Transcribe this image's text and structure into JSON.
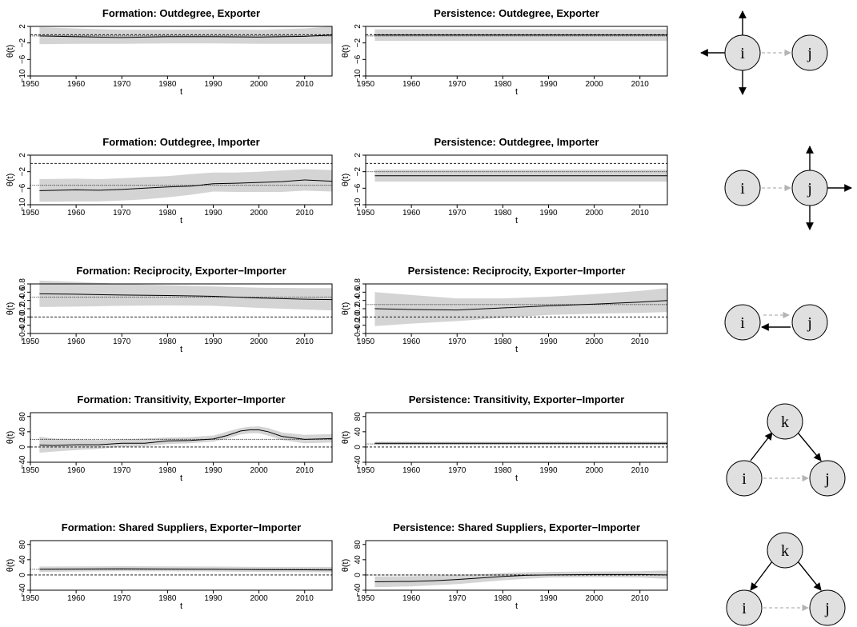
{
  "chart_data": [
    {
      "type": "line",
      "title": "Formation: Outdegree, Exporter",
      "xlabel": "t",
      "ylabel": "θ(t)",
      "xlim": [
        1950,
        2016
      ],
      "ylim": [
        -10,
        2
      ],
      "yticks": [
        2,
        -2,
        -6,
        -10
      ],
      "xticks": [
        1950,
        1960,
        1970,
        1980,
        1990,
        2000,
        2010
      ],
      "ref_lines": [
        {
          "value": 0,
          "style": "dashed"
        },
        {
          "value": -0.3,
          "style": "dotted"
        }
      ],
      "x": [
        1952,
        1960,
        1970,
        1980,
        1990,
        2000,
        2010,
        2016
      ],
      "series": [
        {
          "values": [
            -0.3,
            -0.5,
            -0.7,
            -0.5,
            -0.5,
            -0.6,
            -0.4,
            -0.1
          ],
          "lower": [
            -2.3,
            -2.2,
            -2.2,
            -2.1,
            -2.1,
            -2.2,
            -2.2,
            -2.2
          ],
          "upper": [
            1.8,
            1.5,
            1.2,
            1.2,
            1.3,
            1.2,
            1.5,
            2.0
          ]
        }
      ]
    },
    {
      "type": "line",
      "title": "Persistence: Outdegree, Exporter",
      "xlabel": "t",
      "ylabel": "θ(t)",
      "xlim": [
        1950,
        2016
      ],
      "ylim": [
        -10,
        2
      ],
      "yticks": [
        2,
        -2,
        -6,
        -10
      ],
      "xticks": [
        1950,
        1960,
        1970,
        1980,
        1990,
        2000,
        2010
      ],
      "ref_lines": [
        {
          "value": 0,
          "style": "dashed"
        },
        {
          "value": -0.3,
          "style": "dotted"
        }
      ],
      "x": [
        1952,
        2016
      ],
      "series": [
        {
          "values": [
            -0.1,
            -0.1
          ],
          "lower": [
            -1.5,
            -1.5
          ],
          "upper": [
            1.3,
            1.3
          ]
        }
      ]
    },
    {
      "type": "line",
      "title": "Formation: Outdegree, Importer",
      "xlabel": "t",
      "ylabel": "θ(t)",
      "xlim": [
        1950,
        2016
      ],
      "ylim": [
        -10,
        2
      ],
      "yticks": [
        2,
        -2,
        -6,
        -10
      ],
      "xticks": [
        1950,
        1960,
        1970,
        1980,
        1990,
        2000,
        2010
      ],
      "ref_lines": [
        {
          "value": 0,
          "style": "dashed"
        },
        {
          "value": -5.3,
          "style": "dotted"
        }
      ],
      "x": [
        1952,
        1960,
        1965,
        1970,
        1975,
        1980,
        1985,
        1990,
        1995,
        2000,
        2005,
        2010,
        2016
      ],
      "series": [
        {
          "values": [
            -6.6,
            -6.4,
            -6.5,
            -6.3,
            -6.0,
            -5.7,
            -5.5,
            -4.9,
            -4.8,
            -4.6,
            -4.4,
            -4.0,
            -4.3
          ],
          "lower": [
            -9.3,
            -9.2,
            -9.2,
            -9.0,
            -8.7,
            -8.2,
            -7.6,
            -6.8,
            -6.9,
            -6.9,
            -6.9,
            -6.6,
            -6.8
          ],
          "upper": [
            -3.8,
            -3.7,
            -3.8,
            -3.6,
            -3.3,
            -3.1,
            -2.6,
            -2.2,
            -2.2,
            -2.0,
            -1.7,
            -1.4,
            -1.6
          ]
        }
      ]
    },
    {
      "type": "line",
      "title": "Persistence: Outdegree, Importer",
      "xlabel": "t",
      "ylabel": "θ(t)",
      "xlim": [
        1950,
        2016
      ],
      "ylim": [
        -10,
        2
      ],
      "yticks": [
        2,
        -2,
        -6,
        -10
      ],
      "xticks": [
        1950,
        1960,
        1970,
        1980,
        1990,
        2000,
        2010
      ],
      "ref_lines": [
        {
          "value": 0,
          "style": "dashed"
        },
        {
          "value": -2,
          "style": "dotted"
        }
      ],
      "x": [
        1952,
        2016
      ],
      "series": [
        {
          "values": [
            -3.0,
            -3.0
          ],
          "lower": [
            -4.4,
            -4.4
          ],
          "upper": [
            -1.5,
            -1.5
          ]
        }
      ]
    },
    {
      "type": "line",
      "title": "Formation: Reciprocity, Exporter−Importer",
      "xlabel": "t",
      "ylabel": "θ(t)",
      "xlim": [
        1950,
        2016
      ],
      "ylim": [
        -0.4,
        0.8
      ],
      "yticks": [
        0.8,
        0.6,
        0.4,
        0.2,
        0.0,
        -0.2,
        -0.4
      ],
      "ytick_labels": [
        "0.8",
        "0.6",
        "0.4",
        "0.2",
        "0.0",
        "−0.2",
        "−0.4"
      ],
      "xticks": [
        1950,
        1960,
        1970,
        1980,
        1990,
        2000,
        2010
      ],
      "ref_lines": [
        {
          "value": 0,
          "style": "dashed"
        },
        {
          "value": 0.48,
          "style": "dotted"
        }
      ],
      "x": [
        1952,
        1960,
        1970,
        1980,
        1990,
        2000,
        2010,
        2016
      ],
      "series": [
        {
          "values": [
            0.56,
            0.55,
            0.53,
            0.52,
            0.5,
            0.46,
            0.43,
            0.42
          ],
          "lower": [
            0.24,
            0.25,
            0.27,
            0.28,
            0.27,
            0.22,
            0.18,
            0.16
          ],
          "upper": [
            0.88,
            0.85,
            0.8,
            0.77,
            0.74,
            0.71,
            0.7,
            0.7
          ]
        }
      ]
    },
    {
      "type": "line",
      "title": "Persistence: Reciprocity, Exporter−Importer",
      "xlabel": "t",
      "ylabel": "θ(t)",
      "xlim": [
        1950,
        2016
      ],
      "ylim": [
        -0.4,
        0.8
      ],
      "yticks": [
        0.8,
        0.6,
        0.4,
        0.2,
        0.0,
        -0.2,
        -0.4
      ],
      "ytick_labels": [
        "0.8",
        "0.6",
        "0.4",
        "0.2",
        "0.0",
        "−0.2",
        "−0.4"
      ],
      "xticks": [
        1950,
        1960,
        1970,
        1980,
        1990,
        2000,
        2010
      ],
      "ref_lines": [
        {
          "value": 0,
          "style": "dashed"
        },
        {
          "value": 0.3,
          "style": "dotted"
        }
      ],
      "x": [
        1952,
        1960,
        1970,
        1980,
        1990,
        2000,
        2010,
        2016
      ],
      "series": [
        {
          "values": [
            0.2,
            0.18,
            0.17,
            0.22,
            0.27,
            0.31,
            0.36,
            0.4
          ],
          "lower": [
            -0.22,
            -0.16,
            -0.1,
            -0.02,
            0.05,
            0.08,
            0.1,
            0.12
          ],
          "upper": [
            0.6,
            0.53,
            0.45,
            0.45,
            0.49,
            0.55,
            0.63,
            0.7
          ]
        }
      ]
    },
    {
      "type": "line",
      "title": "Formation: Transitivity, Exporter−Importer",
      "xlabel": "t",
      "ylabel": "θ(t)",
      "xlim": [
        1950,
        2016
      ],
      "ylim": [
        -40,
        90
      ],
      "yticks": [
        80,
        40,
        0,
        -40
      ],
      "xticks": [
        1950,
        1960,
        1970,
        1980,
        1990,
        2000,
        2010
      ],
      "ref_lines": [
        {
          "value": 0,
          "style": "dashed"
        },
        {
          "value": 20,
          "style": "dotted"
        }
      ],
      "x": [
        1952,
        1955,
        1960,
        1965,
        1970,
        1975,
        1980,
        1985,
        1990,
        1993,
        1996,
        1998,
        2000,
        2002,
        2005,
        2010,
        2016
      ],
      "series": [
        {
          "values": [
            5,
            4,
            6,
            6,
            10,
            10,
            16,
            17,
            21,
            30,
            42,
            45,
            45,
            40,
            28,
            20,
            22
          ],
          "lower": [
            -15,
            -12,
            -8,
            -5,
            0,
            2,
            8,
            10,
            14,
            22,
            33,
            36,
            36,
            30,
            18,
            10,
            12
          ],
          "upper": [
            27,
            22,
            20,
            18,
            20,
            22,
            25,
            26,
            30,
            40,
            50,
            53,
            54,
            50,
            38,
            32,
            34
          ]
        }
      ]
    },
    {
      "type": "line",
      "title": "Persistence: Transitivity, Exporter−Importer",
      "xlabel": "t",
      "ylabel": "θ(t)",
      "xlim": [
        1950,
        2016
      ],
      "ylim": [
        -40,
        90
      ],
      "yticks": [
        80,
        40,
        0,
        -40
      ],
      "xticks": [
        1950,
        1960,
        1970,
        1980,
        1990,
        2000,
        2010
      ],
      "ref_lines": [
        {
          "value": 0,
          "style": "dashed"
        },
        {
          "value": 8,
          "style": "dotted"
        }
      ],
      "x": [
        1952,
        2016
      ],
      "series": [
        {
          "values": [
            10,
            10
          ],
          "lower": [
            6,
            6
          ],
          "upper": [
            14,
            14
          ]
        }
      ]
    },
    {
      "type": "line",
      "title": "Formation: Shared Suppliers, Exporter−Importer",
      "xlabel": "t",
      "ylabel": "θ(t)",
      "xlim": [
        1950,
        2016
      ],
      "ylim": [
        -40,
        90
      ],
      "yticks": [
        80,
        40,
        0,
        -40
      ],
      "xticks": [
        1950,
        1960,
        1970,
        1980,
        1990,
        2000,
        2010
      ],
      "ref_lines": [
        {
          "value": 0,
          "style": "dashed"
        },
        {
          "value": 15,
          "style": "dotted"
        }
      ],
      "x": [
        1952,
        1970,
        1990,
        2000,
        2016
      ],
      "series": [
        {
          "values": [
            15,
            16,
            15,
            14,
            13
          ],
          "lower": [
            8,
            10,
            9,
            8,
            7
          ],
          "upper": [
            22,
            23,
            22,
            21,
            21
          ]
        }
      ]
    },
    {
      "type": "line",
      "title": "Persistence: Shared Suppliers, Exporter−Importer",
      "xlabel": "t",
      "ylabel": "θ(t)",
      "xlim": [
        1950,
        2016
      ],
      "ylim": [
        -40,
        90
      ],
      "yticks": [
        80,
        40,
        0,
        -40
      ],
      "xticks": [
        1950,
        1960,
        1970,
        1980,
        1990,
        2000,
        2010
      ],
      "ref_lines": [
        {
          "value": 0,
          "style": "dashed"
        },
        {
          "value": 0,
          "style": "dotted"
        }
      ],
      "x": [
        1952,
        1960,
        1965,
        1970,
        1975,
        1980,
        1985,
        1990,
        2000,
        2010,
        2016
      ],
      "series": [
        {
          "values": [
            -18,
            -17,
            -15,
            -12,
            -8,
            -4,
            -1,
            0,
            1,
            1,
            0
          ],
          "lower": [
            -32,
            -30,
            -27,
            -24,
            -19,
            -14,
            -10,
            -7,
            -6,
            -7,
            -10
          ],
          "upper": [
            -4,
            -3,
            -2,
            0,
            2,
            5,
            7,
            8,
            9,
            10,
            12
          ]
        }
      ]
    }
  ],
  "diagrams": [
    {
      "type": "formation-outdegree-exporter",
      "nodes": [
        "i",
        "j"
      ]
    },
    {
      "type": "formation-outdegree-importer",
      "nodes": [
        "i",
        "j"
      ]
    },
    {
      "type": "reciprocity",
      "nodes": [
        "i",
        "j"
      ]
    },
    {
      "type": "transitivity",
      "nodes": [
        "k",
        "i",
        "j"
      ]
    },
    {
      "type": "shared-suppliers",
      "nodes": [
        "k",
        "i",
        "j"
      ]
    }
  ],
  "colors": {
    "band": "#d4d4d4",
    "line": "#000000",
    "dashed_arrow": "#b4b4b4",
    "node_fill": "#e0e0e0"
  }
}
